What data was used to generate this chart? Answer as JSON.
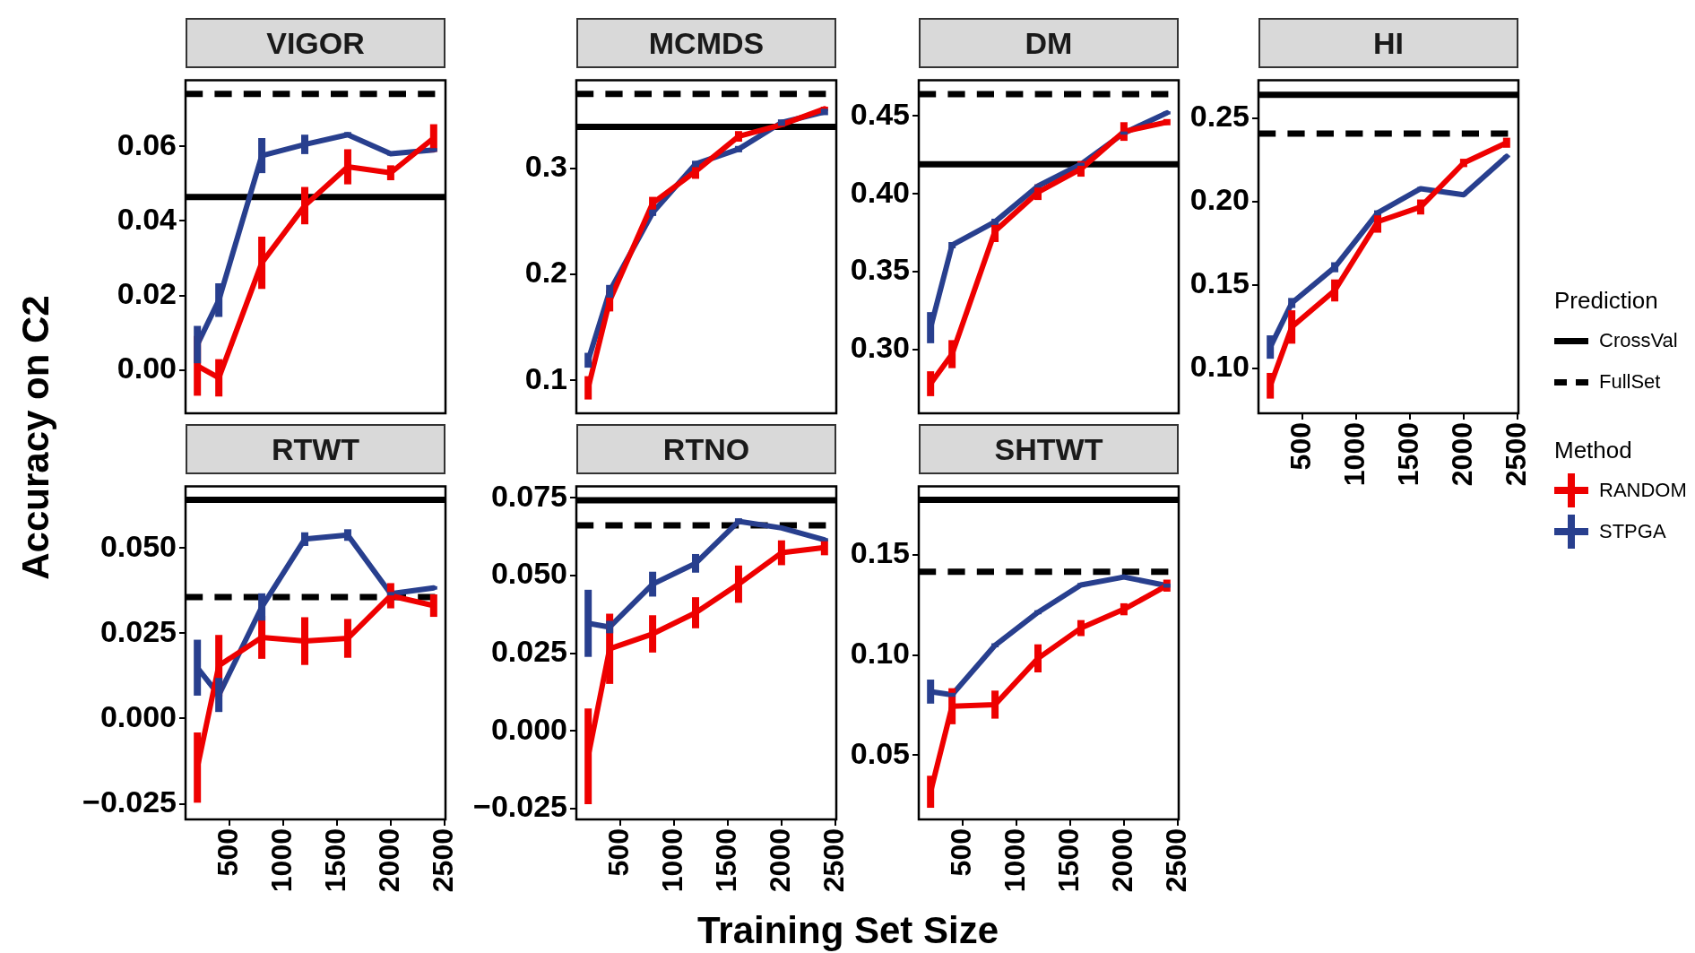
{
  "chart_data": [
    {
      "type": "line",
      "title": "VIGOR",
      "ylabel": "Accuracy on C2",
      "x": [
        200,
        400,
        800,
        1200,
        1600,
        2000,
        2400
      ],
      "xlim": [
        90,
        2510
      ],
      "xticks": [
        500,
        1000,
        1500,
        2000,
        2500
      ],
      "ylim": [
        -0.0115,
        0.0777
      ],
      "yticks": [
        {
          "value": 0,
          "label": "0.00"
        },
        0.02,
        0.04,
        0.06
      ],
      "tick_labels": "y",
      "ref_lines": [
        {
          "axis": "y",
          "value": 0.0464,
          "line_style": "solid"
        },
        {
          "axis": "y",
          "value": 0.074,
          "line_style": "dashed"
        }
      ],
      "series": [
        {
          "color": "#ee0000",
          "values": [
            0.0012,
            -0.002,
            0.0288,
            0.0441,
            0.0545,
            0.0529,
            0.0622
          ],
          "errors": [
            0.008,
            0.005,
            0.007,
            0.005,
            0.0047,
            0.002,
            0.0037
          ]
        },
        {
          "color": "#283f8e",
          "values": [
            0.0069,
            0.0188,
            0.0575,
            0.0605,
            0.0631,
            0.058,
            0.059
          ],
          "errors": [
            0.005,
            0.0045,
            0.0047,
            0.0026,
            0.0007,
            0.0005,
            0.0005
          ]
        }
      ]
    },
    {
      "type": "line",
      "title": "MCMDS",
      "x": [
        200,
        400,
        800,
        1200,
        1600,
        2000,
        2400
      ],
      "xlim": [
        90,
        2510
      ],
      "xticks": [
        500,
        1000,
        1500,
        2000,
        2500
      ],
      "ylim": [
        0.069,
        0.383
      ],
      "yticks": [
        0.1,
        0.2,
        0.3
      ],
      "tick_labels": "y",
      "ref_lines": [
        {
          "axis": "y",
          "value": 0.339,
          "line_style": "solid"
        },
        {
          "axis": "y",
          "value": 0.37,
          "line_style": "dashed"
        }
      ],
      "series": [
        {
          "color": "#ee0000",
          "values": [
            0.093,
            0.175,
            0.267,
            0.297,
            0.33,
            0.341,
            0.356
          ],
          "errors": [
            0.011,
            0.01,
            0.006,
            0.007,
            0.005,
            0.002,
            0.002
          ]
        },
        {
          "color": "#283f8e",
          "values": [
            0.119,
            0.184,
            0.258,
            0.304,
            0.318,
            0.343,
            0.353
          ],
          "errors": [
            0.007,
            0.006,
            0.003,
            0.003,
            0.003,
            0.003,
            0.003
          ]
        }
      ]
    },
    {
      "type": "line",
      "title": "DM",
      "x": [
        200,
        400,
        800,
        1200,
        1600,
        2000,
        2400
      ],
      "xlim": [
        90,
        2510
      ],
      "xticks": [
        500,
        1000,
        1500,
        2000,
        2500
      ],
      "ylim": [
        0.259,
        0.473
      ],
      "yticks": [
        {
          "value": 0.3,
          "label": "0.30"
        },
        0.35,
        {
          "value": 0.4,
          "label": "0.40"
        },
        0.45
      ],
      "tick_labels": "y",
      "ref_lines": [
        {
          "axis": "y",
          "value": 0.419,
          "line_style": "solid"
        },
        {
          "axis": "y",
          "value": 0.464,
          "line_style": "dashed"
        }
      ],
      "series": [
        {
          "color": "#ee0000",
          "values": [
            0.278,
            0.297,
            0.376,
            0.401,
            0.416,
            0.44,
            0.446
          ],
          "errors": [
            0.008,
            0.009,
            0.007,
            0.005,
            0.005,
            0.006,
            0.002
          ]
        },
        {
          "color": "#283f8e",
          "values": [
            0.314,
            0.367,
            0.382,
            0.405,
            0.419,
            0.439,
            0.452
          ],
          "errors": [
            0.01,
            0.002,
            0.002,
            0.001,
            0.001,
            0.001,
            0.001
          ]
        }
      ]
    },
    {
      "type": "line",
      "title": "HI",
      "x": [
        200,
        400,
        800,
        1200,
        1600,
        2000,
        2400
      ],
      "xlim": [
        90,
        2510
      ],
      "xticks": [
        500,
        1000,
        1500,
        2000,
        2500
      ],
      "ylim": [
        0.0731,
        0.2727
      ],
      "yticks": [
        {
          "value": 0.1,
          "label": "0.10"
        },
        0.15,
        {
          "value": 0.2,
          "label": "0.20"
        },
        0.25
      ],
      "legend": "right",
      "legend_title": "Prediction",
      "annotations": [
        "Method"
      ],
      "ref_lines": [
        {
          "axis": "y",
          "value": 0.2639,
          "label": "CrossVal",
          "line_style": "solid"
        },
        {
          "axis": "y",
          "value": 0.2407,
          "label": "FullSet",
          "line_style": "dashed"
        }
      ],
      "series": [
        {
          "name": "RANDOM",
          "color": "#ee0000",
          "values": [
            0.0896,
            0.1248,
            0.1467,
            0.1879,
            0.1967,
            0.2231,
            0.2352
          ],
          "errors": [
            0.0077,
            0.01,
            0.0066,
            0.0066,
            0.0045,
            0.0025,
            0.003
          ]
        },
        {
          "name": "STPGA",
          "color": "#283f8e",
          "values": [
            0.1128,
            0.1392,
            0.1606,
            0.1932,
            0.2077,
            0.204,
            0.227
          ],
          "errors": [
            0.007,
            0.003,
            0.003,
            0.0015,
            0.001,
            0.0005,
            0.0005
          ]
        }
      ]
    },
    {
      "type": "line",
      "title": "RTWT",
      "x": [
        200,
        400,
        800,
        1200,
        1600,
        2000,
        2400
      ],
      "xlim": [
        90,
        2510
      ],
      "xticks": [
        500,
        1000,
        1500,
        2000,
        2500
      ],
      "ylim": [
        -0.0296,
        0.0681
      ],
      "yticks": [
        {
          "value": -0.025,
          "label": "−0.025"
        },
        {
          "value": 0,
          "label": "0.000"
        },
        0.025,
        {
          "value": 0.05,
          "label": "0.050"
        }
      ],
      "ref_lines": [
        {
          "axis": "y",
          "value": 0.0641,
          "line_style": "solid"
        },
        {
          "axis": "y",
          "value": 0.0356,
          "line_style": "dashed"
        }
      ],
      "series": [
        {
          "color": "#ee0000",
          "values": [
            -0.0144,
            0.0155,
            0.0238,
            0.0227,
            0.0235,
            0.036,
            0.0331
          ],
          "errors": [
            0.0103,
            0.009,
            0.0063,
            0.007,
            0.0057,
            0.0037,
            0.0033
          ]
        },
        {
          "color": "#283f8e",
          "values": [
            0.0149,
            0.0069,
            0.0327,
            0.0526,
            0.0538,
            0.0366,
            0.0383
          ],
          "errors": [
            0.0082,
            0.005,
            0.004,
            0.002,
            0.0017,
            0.0005,
            0.0005
          ]
        }
      ]
    },
    {
      "type": "line",
      "title": "RTNO",
      "xlabel": "Training Set Size",
      "x": [
        200,
        400,
        800,
        1200,
        1600,
        2000,
        2400
      ],
      "xlim": [
        90,
        2510
      ],
      "xticks": [
        500,
        1000,
        1500,
        2000,
        2500
      ],
      "ylim": [
        -0.0285,
        0.0787
      ],
      "yticks": [
        {
          "value": -0.025,
          "label": "−0.025"
        },
        {
          "value": 0,
          "label": "0.000"
        },
        0.025,
        {
          "value": 0.05,
          "label": "0.050"
        },
        0.075
      ],
      "ref_lines": [
        {
          "axis": "y",
          "value": 0.0742,
          "line_style": "solid"
        },
        {
          "axis": "y",
          "value": 0.0661,
          "line_style": "dashed"
        }
      ],
      "series": [
        {
          "color": "#ee0000",
          "values": [
            -0.0082,
            0.0264,
            0.0312,
            0.038,
            0.0472,
            0.0573,
            0.059
          ],
          "errors": [
            0.0154,
            0.0113,
            0.006,
            0.005,
            0.006,
            0.004,
            0.0025
          ]
        },
        {
          "color": "#283f8e",
          "values": [
            0.0346,
            0.0334,
            0.0472,
            0.0539,
            0.0674,
            0.0653,
            0.0615
          ],
          "errors": [
            0.0108,
            0.002,
            0.004,
            0.003,
            0.001,
            0.0005,
            0.0005
          ]
        }
      ]
    },
    {
      "type": "line",
      "title": "SHTWT",
      "x": [
        200,
        400,
        800,
        1200,
        1600,
        2000,
        2400
      ],
      "xlim": [
        90,
        2510
      ],
      "xticks": [
        500,
        1000,
        1500,
        2000,
        2500
      ],
      "ylim": [
        0.018,
        0.1843
      ],
      "yticks": [
        0.05,
        {
          "value": 0.1,
          "label": "0.10"
        },
        0.15
      ],
      "ref_lines": [
        {
          "axis": "y",
          "value": 0.1775,
          "line_style": "solid"
        },
        {
          "axis": "y",
          "value": 0.1416,
          "line_style": "dashed"
        }
      ],
      "series": [
        {
          "color": "#ee0000",
          "values": [
            0.0318,
            0.0745,
            0.0753,
            0.0984,
            0.1135,
            0.1229,
            0.1347
          ],
          "errors": [
            0.008,
            0.009,
            0.007,
            0.007,
            0.004,
            0.003,
            0.003
          ]
        },
        {
          "color": "#283f8e",
          "values": [
            0.0818,
            0.0802,
            0.1049,
            0.1214,
            0.135,
            0.139,
            0.1347
          ],
          "errors": [
            0.006,
            0.001,
            0.001,
            0.001,
            0.001,
            0.001,
            0.001
          ]
        }
      ]
    }
  ]
}
